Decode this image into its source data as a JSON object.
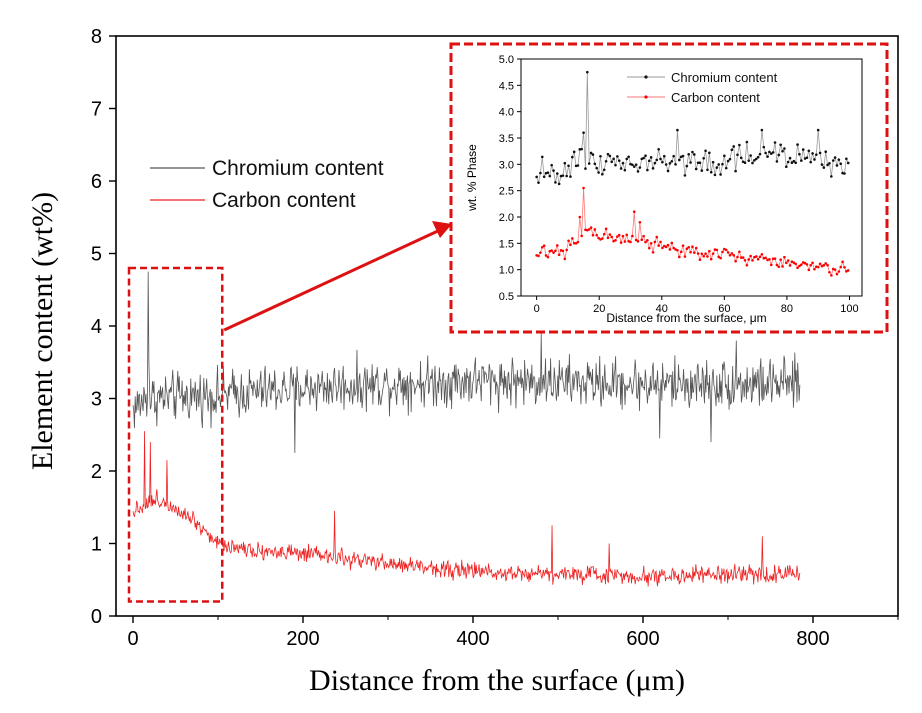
{
  "chart_data": [
    {
      "id": "main",
      "type": "line",
      "xlabel": "Distance from the surface (μm)",
      "ylabel": "Element content (wt%)",
      "xlim": [
        -20,
        900
      ],
      "ylim": [
        0,
        8
      ],
      "xticks": [
        0,
        200,
        400,
        600,
        800
      ],
      "yticks": [
        0,
        1,
        2,
        3,
        4,
        5,
        6,
        7,
        8
      ],
      "legend_position": "middle-left",
      "grid": false,
      "series": [
        {
          "name": "Chromium content",
          "color": "#555555",
          "x_range": [
            0,
            785
          ],
          "anchors": [
            [
              0,
              2.85
            ],
            [
              15,
              3.0
            ],
            [
              100,
              3.05
            ],
            [
              200,
              3.15
            ],
            [
              400,
              3.25
            ],
            [
              600,
              3.2
            ],
            [
              785,
              3.2
            ]
          ],
          "noise": 0.28,
          "spikes": [
            [
              18,
              4.75
            ],
            [
              19,
              3.5
            ],
            [
              190,
              2.25
            ],
            [
              480,
              3.9
            ],
            [
              620,
              2.45
            ],
            [
              680,
              2.4
            ],
            [
              710,
              3.8
            ]
          ]
        },
        {
          "name": "Carbon content",
          "color": "#ee2222",
          "x_range": [
            0,
            785
          ],
          "anchors": [
            [
              0,
              1.45
            ],
            [
              15,
              1.55
            ],
            [
              30,
              1.6
            ],
            [
              50,
              1.5
            ],
            [
              70,
              1.35
            ],
            [
              100,
              1.0
            ],
            [
              150,
              0.9
            ],
            [
              200,
              0.85
            ],
            [
              300,
              0.72
            ],
            [
              400,
              0.62
            ],
            [
              500,
              0.58
            ],
            [
              600,
              0.55
            ],
            [
              785,
              0.58
            ]
          ],
          "noise": 0.1,
          "spikes": [
            [
              14,
              2.55
            ],
            [
              20,
              2.4
            ],
            [
              40,
              2.15
            ],
            [
              237,
              1.45
            ],
            [
              493,
              1.25
            ],
            [
              560,
              1.0
            ],
            [
              740,
              1.1
            ]
          ]
        }
      ],
      "annotations": {
        "highlight_box_x": [
          0,
          105
        ],
        "highlight_box_y": [
          0.2,
          4.8
        ],
        "arrow_color": "#dd1111"
      }
    },
    {
      "id": "inset",
      "type": "line",
      "xlabel": "Distance from the surface, μm",
      "ylabel": "wt. % Phase",
      "xlim": [
        -5,
        104
      ],
      "ylim": [
        0.5,
        5.0
      ],
      "xticks": [
        0,
        20,
        40,
        60,
        80,
        100
      ],
      "yticks": [
        0.5,
        1.0,
        1.5,
        2.0,
        2.5,
        3.0,
        3.5,
        4.0,
        4.5,
        5.0
      ],
      "legend_position": "top-center",
      "grid": false,
      "series": [
        {
          "name": "Chromium content",
          "color": "#111111",
          "line_color": "#999999",
          "x_range": [
            0,
            100
          ],
          "anchors": [
            [
              0,
              2.85
            ],
            [
              10,
              2.9
            ],
            [
              14,
              3.2
            ],
            [
              20,
              3.0
            ],
            [
              40,
              3.0
            ],
            [
              60,
              3.05
            ],
            [
              75,
              3.2
            ],
            [
              100,
              2.95
            ]
          ],
          "noise": 0.2,
          "spikes": [
            [
              16,
              4.75
            ],
            [
              15,
              3.6
            ],
            [
              45,
              3.65
            ],
            [
              72,
              3.65
            ],
            [
              90,
              3.65
            ]
          ]
        },
        {
          "name": "Carbon content",
          "color": "#ff0000",
          "line_color": "#ff7777",
          "x_range": [
            0,
            100
          ],
          "anchors": [
            [
              0,
              1.35
            ],
            [
              8,
              1.35
            ],
            [
              12,
              1.5
            ],
            [
              16,
              1.75
            ],
            [
              20,
              1.65
            ],
            [
              30,
              1.6
            ],
            [
              40,
              1.45
            ],
            [
              60,
              1.25
            ],
            [
              75,
              1.15
            ],
            [
              100,
              0.98
            ]
          ],
          "noise": 0.12,
          "spikes": [
            [
              15,
              2.55
            ],
            [
              14,
              2.0
            ],
            [
              31,
              2.1
            ],
            [
              33,
              1.9
            ]
          ]
        }
      ],
      "frame_color": "#dd1111"
    }
  ]
}
